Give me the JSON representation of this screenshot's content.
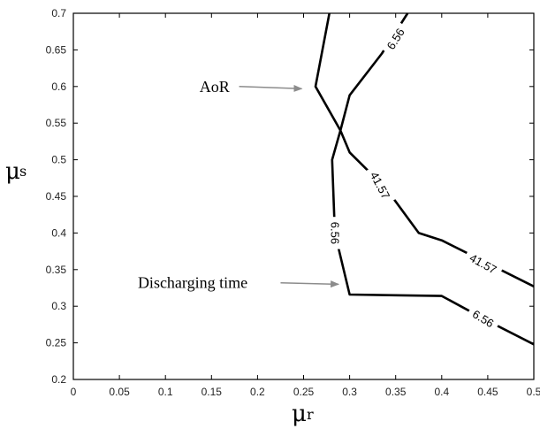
{
  "chart_data": {
    "type": "line",
    "title": "",
    "xlabel": {
      "symbol": "μ",
      "subscript": "r"
    },
    "ylabel": {
      "symbol": "μ",
      "subscript": "s"
    },
    "xlim": [
      0,
      0.5
    ],
    "ylim": [
      0.2,
      0.7
    ],
    "xticks": [
      "0",
      "0.05",
      "0.1",
      "0.15",
      "0.2",
      "0.25",
      "0.3",
      "0.35",
      "0.4",
      "0.45",
      "0.5"
    ],
    "yticks": [
      "0.2",
      "0.25",
      "0.3",
      "0.35",
      "0.4",
      "0.45",
      "0.5",
      "0.55",
      "0.6",
      "0.65",
      "0.7"
    ],
    "grid": false,
    "series": [
      {
        "labels": [
          "6.56",
          "41.57"
        ],
        "color": "#000000",
        "points": [
          [
            0.278,
            0.7
          ],
          [
            0.263,
            0.6
          ],
          [
            0.29,
            0.54
          ],
          [
            0.3,
            0.51
          ],
          [
            0.34,
            0.46
          ],
          [
            0.375,
            0.4
          ],
          [
            0.4,
            0.39
          ],
          [
            0.5,
            0.327
          ]
        ]
      },
      {
        "labels": [
          "6.56",
          "6.56",
          "6.56"
        ],
        "color": "#000000",
        "points": [
          [
            0.363,
            0.7
          ],
          [
            0.335,
            0.645
          ],
          [
            0.3,
            0.588
          ],
          [
            0.29,
            0.54
          ],
          [
            0.281,
            0.5
          ],
          [
            0.284,
            0.4
          ],
          [
            0.3,
            0.316
          ],
          [
            0.35,
            0.315
          ],
          [
            0.4,
            0.314
          ],
          [
            0.45,
            0.28
          ],
          [
            0.5,
            0.248
          ]
        ]
      }
    ],
    "contour_labels": [
      {
        "text": "6.56",
        "x": 0.35,
        "y": 0.665,
        "angle": -58
      },
      {
        "text": "41.57",
        "x": 0.333,
        "y": 0.465,
        "angle": 62
      },
      {
        "text": "41.57",
        "x": 0.445,
        "y": 0.358,
        "angle": 29
      },
      {
        "text": "6.56",
        "x": 0.284,
        "y": 0.4,
        "angle": 90
      },
      {
        "text": "6.56",
        "x": 0.445,
        "y": 0.283,
        "angle": 31
      }
    ],
    "annotations": [
      {
        "text": "AoR",
        "text_x": 0.137,
        "text_y": 0.6,
        "arrow_from": [
          0.18,
          0.6
        ],
        "arrow_to": [
          0.248,
          0.597
        ]
      },
      {
        "text": "Discharging time",
        "text_x": 0.07,
        "text_y": 0.332,
        "arrow_from": [
          0.225,
          0.332
        ],
        "arrow_to": [
          0.288,
          0.33
        ]
      }
    ]
  }
}
